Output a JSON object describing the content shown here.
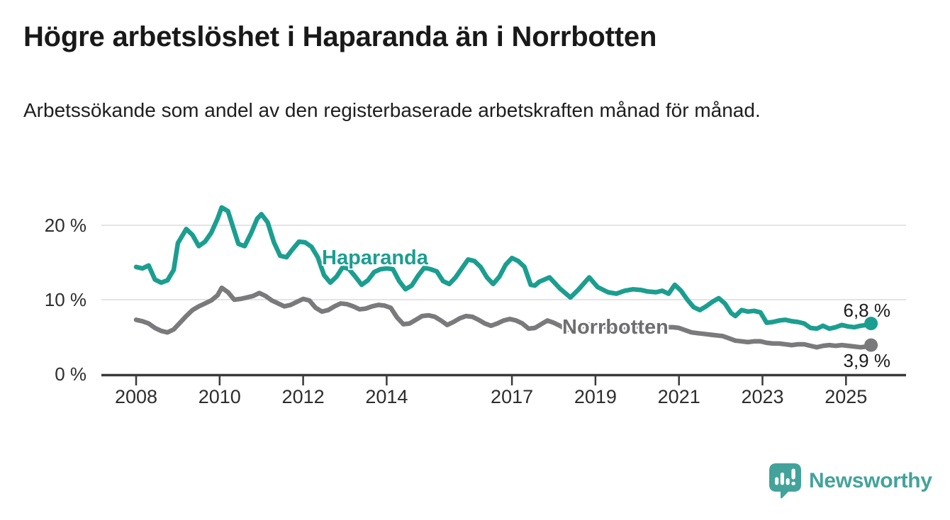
{
  "chart_data": {
    "type": "line",
    "title": "Högre arbetslöshet i Haparanda än i Norrbotten",
    "subtitle": "Arbetssökande som andel av den registerbaserade arbetskraften månad för månad.",
    "unit": "%",
    "grid": "horizontal",
    "legend_position": "inline-labels",
    "x_axis": {
      "range": [
        2007.8,
        2025.95
      ],
      "ticks": [
        {
          "value": 2008,
          "label": "2008"
        },
        {
          "value": 2010,
          "label": "2010"
        },
        {
          "value": 2012,
          "label": "2012"
        },
        {
          "value": 2014,
          "label": "2014"
        },
        {
          "value": 2017,
          "label": "2017"
        },
        {
          "value": 2019,
          "label": "2019"
        },
        {
          "value": 2021,
          "label": "2021"
        },
        {
          "value": 2023,
          "label": "2023"
        },
        {
          "value": 2025,
          "label": "2025"
        }
      ]
    },
    "y_axis": {
      "range": [
        0,
        23.5
      ],
      "ticks": [
        {
          "value": 0,
          "label": "0 %"
        },
        {
          "value": 10,
          "label": "10 %"
        },
        {
          "value": 20,
          "label": "20 %"
        }
      ]
    },
    "series": [
      {
        "name": "Haparanda",
        "line_label": "Haparanda",
        "color": "#1b9e90",
        "label_color": "#1b9e90",
        "end_label": "6,8 %",
        "last_value": 6.8,
        "points": [
          [
            2008.0,
            14.4
          ],
          [
            2008.15,
            14.2
          ],
          [
            2008.3,
            14.6
          ],
          [
            2008.45,
            12.7
          ],
          [
            2008.6,
            12.3
          ],
          [
            2008.75,
            12.6
          ],
          [
            2008.9,
            14.0
          ],
          [
            2009.0,
            17.6
          ],
          [
            2009.2,
            19.5
          ],
          [
            2009.35,
            18.7
          ],
          [
            2009.5,
            17.2
          ],
          [
            2009.65,
            17.8
          ],
          [
            2009.8,
            19.0
          ],
          [
            2009.95,
            20.9
          ],
          [
            2010.05,
            22.4
          ],
          [
            2010.2,
            21.9
          ],
          [
            2010.3,
            20.1
          ],
          [
            2010.45,
            17.5
          ],
          [
            2010.6,
            17.2
          ],
          [
            2010.75,
            18.9
          ],
          [
            2010.9,
            20.9
          ],
          [
            2011.0,
            21.5
          ],
          [
            2011.15,
            20.4
          ],
          [
            2011.3,
            17.7
          ],
          [
            2011.45,
            15.9
          ],
          [
            2011.6,
            15.7
          ],
          [
            2011.75,
            16.8
          ],
          [
            2011.9,
            17.8
          ],
          [
            2012.05,
            17.7
          ],
          [
            2012.2,
            17.1
          ],
          [
            2012.35,
            15.7
          ],
          [
            2012.5,
            13.3
          ],
          [
            2012.65,
            12.3
          ],
          [
            2012.8,
            13.1
          ],
          [
            2012.95,
            14.4
          ],
          [
            2013.1,
            14.1
          ],
          [
            2013.25,
            13.1
          ],
          [
            2013.4,
            12.0
          ],
          [
            2013.55,
            12.6
          ],
          [
            2013.7,
            13.7
          ],
          [
            2013.85,
            14.1
          ],
          [
            2014.0,
            14.2
          ],
          [
            2014.15,
            14.1
          ],
          [
            2014.3,
            12.5
          ],
          [
            2014.45,
            11.4
          ],
          [
            2014.6,
            11.9
          ],
          [
            2014.75,
            13.2
          ],
          [
            2014.9,
            14.3
          ],
          [
            2015.05,
            14.1
          ],
          [
            2015.2,
            13.8
          ],
          [
            2015.35,
            12.5
          ],
          [
            2015.5,
            12.1
          ],
          [
            2015.65,
            13.0
          ],
          [
            2015.8,
            14.2
          ],
          [
            2015.95,
            15.4
          ],
          [
            2016.1,
            15.2
          ],
          [
            2016.25,
            14.4
          ],
          [
            2016.4,
            13.0
          ],
          [
            2016.55,
            12.1
          ],
          [
            2016.7,
            13.1
          ],
          [
            2016.85,
            14.7
          ],
          [
            2017.0,
            15.6
          ],
          [
            2017.15,
            15.2
          ],
          [
            2017.3,
            14.4
          ],
          [
            2017.45,
            12.0
          ],
          [
            2017.55,
            11.9
          ],
          [
            2017.65,
            12.4
          ],
          [
            2017.9,
            13.0
          ],
          [
            2018.15,
            11.5
          ],
          [
            2018.4,
            10.3
          ],
          [
            2018.6,
            11.4
          ],
          [
            2018.85,
            13.0
          ],
          [
            2019.05,
            11.7
          ],
          [
            2019.3,
            11.0
          ],
          [
            2019.5,
            10.8
          ],
          [
            2019.7,
            11.2
          ],
          [
            2019.9,
            11.4
          ],
          [
            2020.1,
            11.3
          ],
          [
            2020.25,
            11.1
          ],
          [
            2020.45,
            11.0
          ],
          [
            2020.6,
            11.2
          ],
          [
            2020.75,
            10.8
          ],
          [
            2020.9,
            12.0
          ],
          [
            2021.05,
            11.2
          ],
          [
            2021.2,
            10.0
          ],
          [
            2021.35,
            9.0
          ],
          [
            2021.5,
            8.6
          ],
          [
            2021.65,
            9.1
          ],
          [
            2021.8,
            9.7
          ],
          [
            2021.95,
            10.2
          ],
          [
            2022.1,
            9.5
          ],
          [
            2022.25,
            8.2
          ],
          [
            2022.35,
            7.8
          ],
          [
            2022.5,
            8.6
          ],
          [
            2022.65,
            8.4
          ],
          [
            2022.8,
            8.5
          ],
          [
            2022.95,
            8.3
          ],
          [
            2023.1,
            6.9
          ],
          [
            2023.25,
            7.0
          ],
          [
            2023.4,
            7.2
          ],
          [
            2023.55,
            7.3
          ],
          [
            2023.7,
            7.1
          ],
          [
            2023.85,
            7.0
          ],
          [
            2024.0,
            6.8
          ],
          [
            2024.15,
            6.2
          ],
          [
            2024.3,
            6.1
          ],
          [
            2024.45,
            6.5
          ],
          [
            2024.6,
            6.1
          ],
          [
            2024.75,
            6.3
          ],
          [
            2024.9,
            6.6
          ],
          [
            2025.05,
            6.4
          ],
          [
            2025.2,
            6.3
          ],
          [
            2025.35,
            6.5
          ],
          [
            2025.5,
            6.6
          ],
          [
            2025.6,
            6.8
          ]
        ]
      },
      {
        "name": "Norrbotten",
        "line_label": "Norrbotten",
        "color": "#7a7a7c",
        "label_color": "#6e6e71",
        "end_label": "3,9 %",
        "last_value": 3.9,
        "points": [
          [
            2008.0,
            7.3
          ],
          [
            2008.15,
            7.1
          ],
          [
            2008.3,
            6.8
          ],
          [
            2008.45,
            6.2
          ],
          [
            2008.6,
            5.8
          ],
          [
            2008.75,
            5.6
          ],
          [
            2008.9,
            6.0
          ],
          [
            2009.05,
            6.9
          ],
          [
            2009.2,
            7.8
          ],
          [
            2009.35,
            8.6
          ],
          [
            2009.5,
            9.1
          ],
          [
            2009.65,
            9.5
          ],
          [
            2009.8,
            9.9
          ],
          [
            2009.95,
            10.6
          ],
          [
            2010.05,
            11.6
          ],
          [
            2010.2,
            11.0
          ],
          [
            2010.35,
            10.0
          ],
          [
            2010.5,
            10.1
          ],
          [
            2010.65,
            10.3
          ],
          [
            2010.8,
            10.5
          ],
          [
            2010.95,
            10.9
          ],
          [
            2011.1,
            10.5
          ],
          [
            2011.25,
            9.9
          ],
          [
            2011.4,
            9.5
          ],
          [
            2011.55,
            9.1
          ],
          [
            2011.7,
            9.3
          ],
          [
            2011.85,
            9.7
          ],
          [
            2012.0,
            10.1
          ],
          [
            2012.15,
            9.9
          ],
          [
            2012.3,
            8.9
          ],
          [
            2012.45,
            8.4
          ],
          [
            2012.6,
            8.6
          ],
          [
            2012.75,
            9.1
          ],
          [
            2012.9,
            9.5
          ],
          [
            2013.05,
            9.4
          ],
          [
            2013.2,
            9.1
          ],
          [
            2013.35,
            8.7
          ],
          [
            2013.5,
            8.8
          ],
          [
            2013.65,
            9.1
          ],
          [
            2013.8,
            9.3
          ],
          [
            2013.95,
            9.2
          ],
          [
            2014.1,
            8.9
          ],
          [
            2014.25,
            7.6
          ],
          [
            2014.4,
            6.7
          ],
          [
            2014.55,
            6.8
          ],
          [
            2014.7,
            7.3
          ],
          [
            2014.85,
            7.8
          ],
          [
            2015.0,
            7.9
          ],
          [
            2015.15,
            7.7
          ],
          [
            2015.3,
            7.2
          ],
          [
            2015.45,
            6.6
          ],
          [
            2015.6,
            7.0
          ],
          [
            2015.75,
            7.5
          ],
          [
            2015.9,
            7.8
          ],
          [
            2016.05,
            7.7
          ],
          [
            2016.2,
            7.3
          ],
          [
            2016.35,
            6.8
          ],
          [
            2016.5,
            6.5
          ],
          [
            2016.65,
            6.8
          ],
          [
            2016.8,
            7.2
          ],
          [
            2016.95,
            7.4
          ],
          [
            2017.1,
            7.2
          ],
          [
            2017.25,
            6.8
          ],
          [
            2017.4,
            6.1
          ],
          [
            2017.55,
            6.2
          ],
          [
            2017.7,
            6.7
          ],
          [
            2017.85,
            7.2
          ],
          [
            2018.0,
            6.9
          ],
          [
            2018.15,
            6.5
          ],
          [
            2018.3,
            6.0
          ],
          [
            2018.45,
            5.9
          ],
          [
            2018.6,
            6.2
          ],
          [
            2018.75,
            6.6
          ],
          [
            2018.9,
            6.7
          ],
          [
            2019.05,
            6.6
          ],
          [
            2019.2,
            6.4
          ],
          [
            2019.35,
            6.1
          ],
          [
            2019.5,
            5.9
          ],
          [
            2019.65,
            6.1
          ],
          [
            2019.8,
            6.3
          ],
          [
            2019.95,
            6.4
          ],
          [
            2020.1,
            6.3
          ],
          [
            2020.25,
            6.4
          ],
          [
            2020.4,
            6.6
          ],
          [
            2020.55,
            6.5
          ],
          [
            2020.7,
            6.3
          ],
          [
            2020.85,
            6.3
          ],
          [
            2021.0,
            6.2
          ],
          [
            2021.15,
            5.9
          ],
          [
            2021.3,
            5.6
          ],
          [
            2021.45,
            5.5
          ],
          [
            2021.6,
            5.4
          ],
          [
            2021.75,
            5.3
          ],
          [
            2021.9,
            5.2
          ],
          [
            2022.05,
            5.1
          ],
          [
            2022.2,
            4.8
          ],
          [
            2022.35,
            4.5
          ],
          [
            2022.5,
            4.4
          ],
          [
            2022.65,
            4.3
          ],
          [
            2022.8,
            4.4
          ],
          [
            2022.95,
            4.4
          ],
          [
            2023.1,
            4.2
          ],
          [
            2023.25,
            4.1
          ],
          [
            2023.4,
            4.1
          ],
          [
            2023.55,
            4.0
          ],
          [
            2023.7,
            3.9
          ],
          [
            2023.85,
            4.0
          ],
          [
            2024.0,
            4.0
          ],
          [
            2024.15,
            3.8
          ],
          [
            2024.3,
            3.6
          ],
          [
            2024.45,
            3.8
          ],
          [
            2024.6,
            3.9
          ],
          [
            2024.75,
            3.8
          ],
          [
            2024.9,
            3.9
          ],
          [
            2025.05,
            3.8
          ],
          [
            2025.2,
            3.7
          ],
          [
            2025.35,
            3.6
          ],
          [
            2025.5,
            3.7
          ],
          [
            2025.6,
            3.9
          ]
        ]
      }
    ],
    "colors": {
      "gridline": "#dbdbdb",
      "axis": "#3a3a3a",
      "tick_text": "#2d2d2d"
    }
  },
  "branding": {
    "logo_text": "Newsworthy",
    "logo_icon": "newsworthy-speech-bubble-chart-icon",
    "logo_color": "#43a39b"
  }
}
